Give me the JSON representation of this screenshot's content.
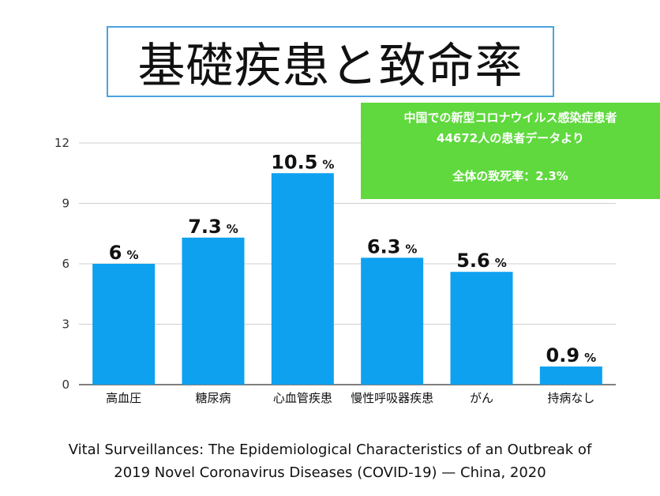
{
  "title": "基礎疾患と致命率",
  "note": {
    "line1": "中国での新型コロナウイルス感染症患者",
    "line2": "44672人の患者データより",
    "line3": "全体の致死率：2.3%"
  },
  "source": {
    "line1": "Vital Surveillances: The Epidemiological Characteristics of an Outbreak of",
    "line2": "2019 Novel Coronavirus Diseases (COVID-19) — China, 2020"
  },
  "chart_data": {
    "type": "bar",
    "categories": [
      "高血圧",
      "糖尿病",
      "心血管疾患",
      "慢性呼吸器疾患",
      "がん",
      "持病なし"
    ],
    "values": [
      6,
      7.3,
      10.5,
      6.3,
      5.6,
      0.9
    ],
    "value_labels": [
      "6",
      "7.3",
      "10.5",
      "6.3",
      "5.6",
      "0.9"
    ],
    "unit": "%",
    "yticks": [
      "0",
      "3",
      "6",
      "9",
      "12"
    ],
    "ylim": [
      0,
      12
    ],
    "grid": true,
    "bar_color": "#0ea1f0"
  }
}
